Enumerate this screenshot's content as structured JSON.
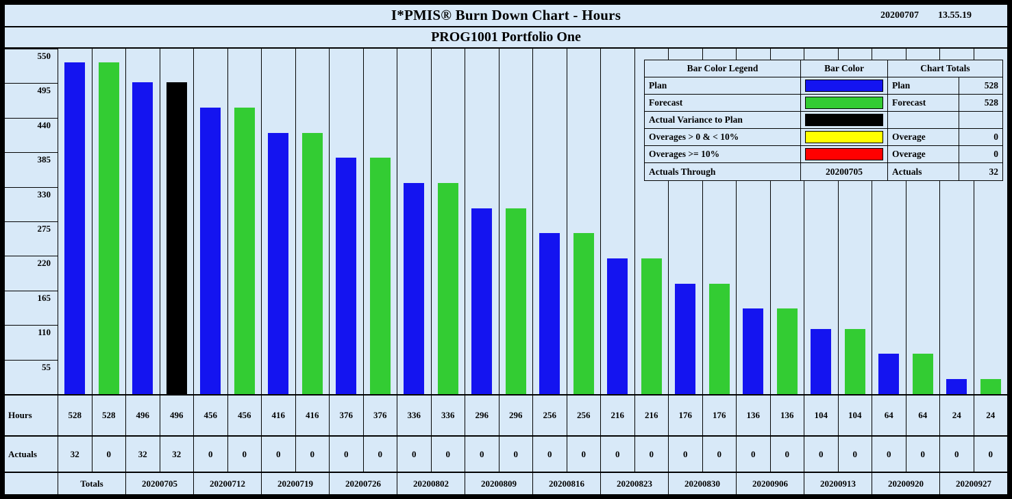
{
  "header": {
    "title": "I*PMIS® Burn Down Chart - Hours",
    "date": "20200707",
    "time": "13.55.19",
    "subtitle": "PROG1001 Portfolio One"
  },
  "colors": {
    "plan": "#1414f0",
    "forecast": "#33cc33",
    "actual_variance": "#000000",
    "overage_low": "#ffff00",
    "overage_high": "#ff0000",
    "background": "#d8e9f8",
    "border": "#000000"
  },
  "legend": {
    "header": {
      "col1": "Bar Color Legend",
      "col2": "Bar Color",
      "col3": "Chart Totals"
    },
    "rows": [
      {
        "label": "Plan",
        "swatch": "plan",
        "total_label": "Plan",
        "total_value": "528"
      },
      {
        "label": "Forecast",
        "swatch": "forecast",
        "total_label": "Forecast",
        "total_value": "528"
      },
      {
        "label": "Actual Variance to Plan",
        "swatch": "actual_variance",
        "total_label": "",
        "total_value": ""
      },
      {
        "label": "Overages > 0 & < 10%",
        "swatch": "overage_low",
        "total_label": "Overage",
        "total_value": "0"
      },
      {
        "label": "Overages >= 10%",
        "swatch": "overage_high",
        "total_label": "Overage",
        "total_value": "0"
      },
      {
        "label": "Actuals Through",
        "swatch_text": "20200705",
        "total_label": "Actuals",
        "total_value": "32"
      }
    ]
  },
  "table": {
    "hours_label": "Hours",
    "actuals_label": "Actuals"
  },
  "chart_data": {
    "type": "bar",
    "title": "I*PMIS® Burn Down Chart - Hours",
    "subtitle": "PROG1001 Portfolio One",
    "xlabel": "",
    "ylabel": "Hours",
    "ylim": [
      0,
      550
    ],
    "yticks": [
      550,
      495,
      440,
      385,
      330,
      275,
      220,
      165,
      110,
      55
    ],
    "legend_position": "top-right",
    "grid": "vertical-column-separators",
    "categories": [
      "Totals",
      "20200705",
      "20200712",
      "20200719",
      "20200726",
      "20200802",
      "20200809",
      "20200816",
      "20200823",
      "20200830",
      "20200906",
      "20200913",
      "20200920",
      "20200927"
    ],
    "groups": [
      {
        "label": "Totals",
        "bars": [
          {
            "series": "Plan",
            "value": 528,
            "color": "plan"
          },
          {
            "series": "Forecast",
            "value": 528,
            "color": "forecast"
          }
        ]
      },
      {
        "label": "20200705",
        "bars": [
          {
            "series": "Plan",
            "value": 496,
            "color": "plan"
          },
          {
            "series": "Actual Variance to Plan",
            "value": 496,
            "color": "actual_variance"
          }
        ]
      },
      {
        "label": "20200712",
        "bars": [
          {
            "series": "Plan",
            "value": 456,
            "color": "plan"
          },
          {
            "series": "Forecast",
            "value": 456,
            "color": "forecast"
          }
        ]
      },
      {
        "label": "20200719",
        "bars": [
          {
            "series": "Plan",
            "value": 416,
            "color": "plan"
          },
          {
            "series": "Forecast",
            "value": 416,
            "color": "forecast"
          }
        ]
      },
      {
        "label": "20200726",
        "bars": [
          {
            "series": "Plan",
            "value": 376,
            "color": "plan"
          },
          {
            "series": "Forecast",
            "value": 376,
            "color": "forecast"
          }
        ]
      },
      {
        "label": "20200802",
        "bars": [
          {
            "series": "Plan",
            "value": 336,
            "color": "plan"
          },
          {
            "series": "Forecast",
            "value": 336,
            "color": "forecast"
          }
        ]
      },
      {
        "label": "20200809",
        "bars": [
          {
            "series": "Plan",
            "value": 296,
            "color": "plan"
          },
          {
            "series": "Forecast",
            "value": 296,
            "color": "forecast"
          }
        ]
      },
      {
        "label": "20200816",
        "bars": [
          {
            "series": "Plan",
            "value": 256,
            "color": "plan"
          },
          {
            "series": "Forecast",
            "value": 256,
            "color": "forecast"
          }
        ]
      },
      {
        "label": "20200823",
        "bars": [
          {
            "series": "Plan",
            "value": 216,
            "color": "plan"
          },
          {
            "series": "Forecast",
            "value": 216,
            "color": "forecast"
          }
        ]
      },
      {
        "label": "20200830",
        "bars": [
          {
            "series": "Plan",
            "value": 176,
            "color": "plan"
          },
          {
            "series": "Forecast",
            "value": 176,
            "color": "forecast"
          }
        ]
      },
      {
        "label": "20200906",
        "bars": [
          {
            "series": "Plan",
            "value": 136,
            "color": "plan"
          },
          {
            "series": "Forecast",
            "value": 136,
            "color": "forecast"
          }
        ]
      },
      {
        "label": "20200913",
        "bars": [
          {
            "series": "Plan",
            "value": 104,
            "color": "plan"
          },
          {
            "series": "Forecast",
            "value": 104,
            "color": "forecast"
          }
        ]
      },
      {
        "label": "20200920",
        "bars": [
          {
            "series": "Plan",
            "value": 64,
            "color": "plan"
          },
          {
            "series": "Forecast",
            "value": 64,
            "color": "forecast"
          }
        ]
      },
      {
        "label": "20200927",
        "bars": [
          {
            "series": "Plan",
            "value": 24,
            "color": "plan"
          },
          {
            "series": "Forecast",
            "value": 24,
            "color": "forecast"
          }
        ]
      }
    ],
    "hours_row": [
      528,
      528,
      496,
      496,
      456,
      456,
      416,
      416,
      376,
      376,
      336,
      336,
      296,
      296,
      256,
      256,
      216,
      216,
      176,
      176,
      136,
      136,
      104,
      104,
      64,
      64,
      24,
      24
    ],
    "actuals_row": [
      32,
      0,
      32,
      32,
      0,
      0,
      0,
      0,
      0,
      0,
      0,
      0,
      0,
      0,
      0,
      0,
      0,
      0,
      0,
      0,
      0,
      0,
      0,
      0,
      0,
      0,
      0,
      0
    ]
  }
}
